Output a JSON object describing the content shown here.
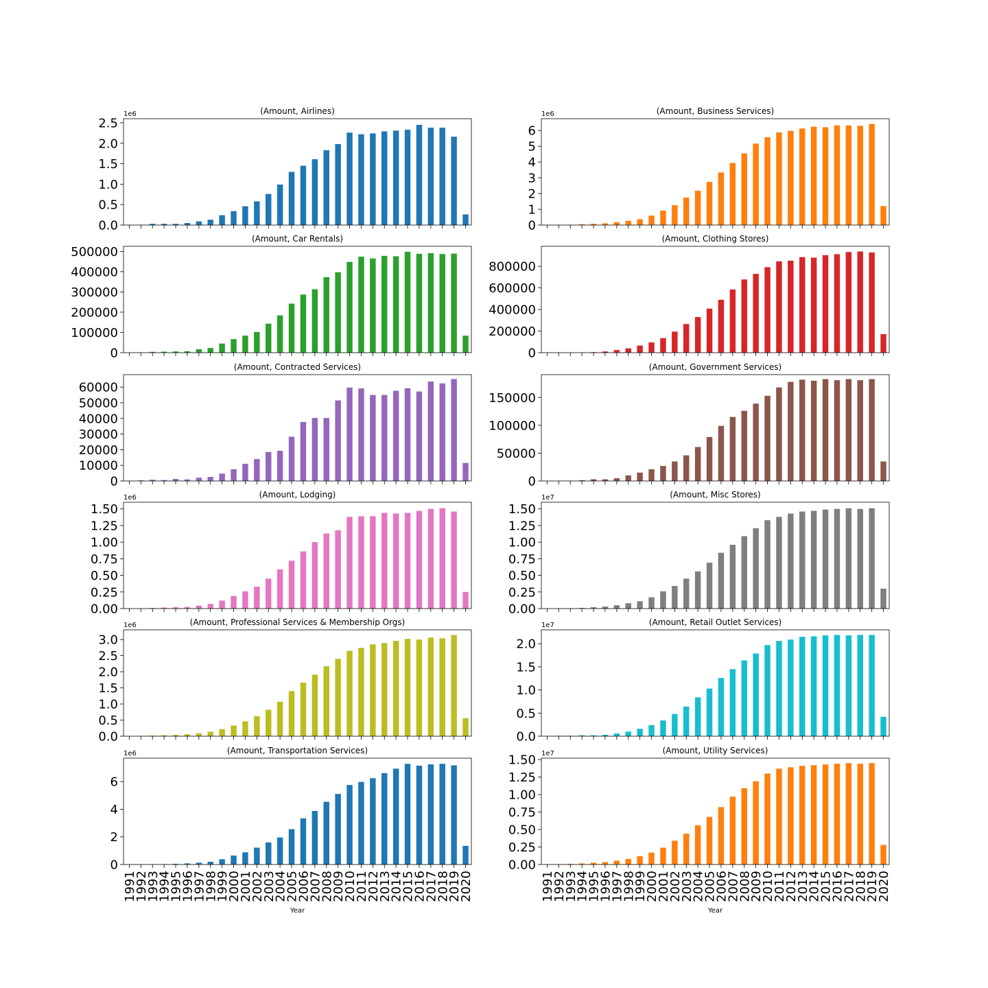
{
  "figure": {
    "xlabel": "Year"
  },
  "categories": [
    "1991",
    "1992",
    "1993",
    "1994",
    "1995",
    "1996",
    "1997",
    "1998",
    "1999",
    "2000",
    "2001",
    "2002",
    "2003",
    "2004",
    "2005",
    "2006",
    "2007",
    "2008",
    "2009",
    "2010",
    "2011",
    "2012",
    "2013",
    "2014",
    "2015",
    "2016",
    "2017",
    "2018",
    "2019",
    "2020"
  ],
  "chart_data": [
    {
      "type": "bar",
      "title": "(Amount, Airlines)",
      "color": "#1f77b4",
      "scale_label": "1e6",
      "ylim": [
        0,
        2.6
      ],
      "yticks": [
        0,
        0.5,
        1.0,
        1.5,
        2.0,
        2.5
      ],
      "ytick_labels": [
        "0.0",
        "0.5",
        "1.0",
        "1.5",
        "2.0",
        "2.5"
      ],
      "values": [
        0.003,
        0.005,
        0.03,
        0.03,
        0.03,
        0.05,
        0.09,
        0.13,
        0.24,
        0.34,
        0.46,
        0.58,
        0.76,
        0.99,
        1.3,
        1.45,
        1.61,
        1.83,
        1.98,
        2.26,
        2.22,
        2.24,
        2.29,
        2.31,
        2.33,
        2.45,
        2.38,
        2.38,
        2.16,
        0.26
      ]
    },
    {
      "type": "bar",
      "title": "(Amount, Business Services)",
      "color": "#ff7f0e",
      "scale_label": "1e6",
      "ylim": [
        0,
        6.75
      ],
      "yticks": [
        0,
        1,
        2,
        3,
        4,
        5,
        6
      ],
      "ytick_labels": [
        "0",
        "1",
        "2",
        "3",
        "4",
        "5",
        "6"
      ],
      "values": [
        0.005,
        0.01,
        0.01,
        0.05,
        0.08,
        0.11,
        0.18,
        0.27,
        0.37,
        0.6,
        0.92,
        1.26,
        1.74,
        2.18,
        2.74,
        3.34,
        3.94,
        4.55,
        5.17,
        5.58,
        5.88,
        5.98,
        6.13,
        6.24,
        6.21,
        6.33,
        6.32,
        6.3,
        6.42,
        1.2
      ]
    },
    {
      "type": "bar",
      "title": "(Amount, Car Rentals)",
      "color": "#2ca02c",
      "scale_label": "",
      "ylim": [
        0,
        525000
      ],
      "yticks": [
        0,
        100000,
        200000,
        300000,
        400000,
        500000
      ],
      "ytick_labels": [
        "0",
        "100000",
        "200000",
        "300000",
        "400000",
        "500000"
      ],
      "values": [
        500,
        1000,
        4000,
        5000,
        6000,
        7000,
        17000,
        23000,
        45000,
        67000,
        84000,
        102000,
        143000,
        184000,
        242000,
        287000,
        313000,
        373000,
        397000,
        448000,
        474000,
        465000,
        478000,
        476000,
        498000,
        488000,
        491000,
        487000,
        489000,
        84000
      ]
    },
    {
      "type": "bar",
      "title": "(Amount, Clothing Stores)",
      "color": "#d62728",
      "scale_label": "",
      "ylim": [
        0,
        985000
      ],
      "yticks": [
        0,
        200000,
        400000,
        600000,
        800000
      ],
      "ytick_labels": [
        "0",
        "200000",
        "400000",
        "600000",
        "800000"
      ],
      "values": [
        300,
        500,
        1000,
        2000,
        5000,
        11000,
        24000,
        40000,
        66000,
        95000,
        135000,
        195000,
        265000,
        330000,
        408000,
        490000,
        585000,
        678000,
        730000,
        792000,
        846000,
        852000,
        885000,
        880000,
        903000,
        912000,
        932000,
        937000,
        928000,
        172000
      ]
    },
    {
      "type": "bar",
      "title": "(Amount, Contracted Services)",
      "color": "#9467bd",
      "scale_label": "",
      "ylim": [
        0,
        68000
      ],
      "yticks": [
        0,
        10000,
        20000,
        30000,
        40000,
        50000,
        60000
      ],
      "ytick_labels": [
        "0",
        "10000",
        "20000",
        "30000",
        "40000",
        "50000",
        "60000"
      ],
      "values": [
        100,
        400,
        800,
        600,
        1300,
        1000,
        2100,
        2600,
        4700,
        7500,
        11000,
        14000,
        18500,
        19300,
        28300,
        37700,
        40300,
        40300,
        51500,
        59700,
        59200,
        55000,
        55000,
        57700,
        59300,
        57200,
        63600,
        62400,
        65200,
        11500
      ]
    },
    {
      "type": "bar",
      "title": "(Amount, Government Services)",
      "color": "#8c564b",
      "scale_label": "",
      "ylim": [
        0,
        191000
      ],
      "yticks": [
        0,
        50000,
        100000,
        150000
      ],
      "ytick_labels": [
        "0",
        "50000",
        "100000",
        "150000"
      ],
      "values": [
        100,
        200,
        500,
        1500,
        3000,
        3000,
        5000,
        10000,
        15000,
        21000,
        27000,
        35000,
        46000,
        61000,
        79000,
        99000,
        115000,
        126000,
        139000,
        153000,
        168000,
        178000,
        182000,
        180000,
        183000,
        181000,
        183000,
        181000,
        183000,
        35000
      ]
    },
    {
      "type": "bar",
      "title": "(Amount, Lodging)",
      "color": "#e377c2",
      "scale_label": "1e6",
      "ylim": [
        0,
        1.6
      ],
      "yticks": [
        0,
        0.25,
        0.5,
        0.75,
        1.0,
        1.25,
        1.5
      ],
      "ytick_labels": [
        "0.00",
        "0.25",
        "0.50",
        "0.75",
        "1.00",
        "1.25",
        "1.50"
      ],
      "values": [
        0.002,
        0.003,
        0.01,
        0.015,
        0.02,
        0.025,
        0.045,
        0.07,
        0.12,
        0.19,
        0.26,
        0.33,
        0.45,
        0.59,
        0.72,
        0.86,
        1.0,
        1.13,
        1.18,
        1.38,
        1.39,
        1.39,
        1.44,
        1.43,
        1.44,
        1.47,
        1.5,
        1.51,
        1.46,
        0.25
      ]
    },
    {
      "type": "bar",
      "title": "(Amount, Misc Stores)",
      "color": "#7f7f7f",
      "scale_label": "1e7",
      "ylim": [
        0,
        1.6
      ],
      "yticks": [
        0,
        0.25,
        0.5,
        0.75,
        1.0,
        1.25,
        1.5
      ],
      "ytick_labels": [
        "0.00",
        "0.25",
        "0.50",
        "0.75",
        "1.00",
        "1.25",
        "1.50"
      ],
      "values": [
        0.001,
        0.002,
        0.004,
        0.01,
        0.02,
        0.03,
        0.05,
        0.08,
        0.11,
        0.17,
        0.26,
        0.34,
        0.45,
        0.56,
        0.69,
        0.84,
        0.96,
        1.09,
        1.21,
        1.33,
        1.38,
        1.43,
        1.46,
        1.47,
        1.49,
        1.5,
        1.51,
        1.5,
        1.51,
        0.3
      ]
    },
    {
      "type": "bar",
      "title": "(Amount, Professional Services & Membership Orgs)",
      "color": "#bcbd22",
      "scale_label": "1e6",
      "ylim": [
        0,
        3.3
      ],
      "yticks": [
        0,
        0.5,
        1.0,
        1.5,
        2.0,
        2.5,
        3.0
      ],
      "ytick_labels": [
        "0.0",
        "0.5",
        "1.0",
        "1.5",
        "2.0",
        "2.5",
        "3.0"
      ],
      "values": [
        0.01,
        0.01,
        0.02,
        0.03,
        0.04,
        0.06,
        0.09,
        0.14,
        0.22,
        0.33,
        0.46,
        0.62,
        0.82,
        1.07,
        1.4,
        1.66,
        1.91,
        2.17,
        2.4,
        2.65,
        2.74,
        2.85,
        2.89,
        2.96,
        3.02,
        3.0,
        3.06,
        3.04,
        3.14,
        0.56
      ]
    },
    {
      "type": "bar",
      "title": "(Amount, Retail Outlet Services)",
      "color": "#17becf",
      "scale_label": "1e7",
      "ylim": [
        0,
        2.3
      ],
      "yticks": [
        0,
        0.5,
        1.0,
        1.5,
        2.0
      ],
      "ytick_labels": [
        "0.0",
        "0.5",
        "1.0",
        "1.5",
        "2.0"
      ],
      "values": [
        0.005,
        0.01,
        0.01,
        0.02,
        0.02,
        0.03,
        0.06,
        0.1,
        0.16,
        0.24,
        0.34,
        0.48,
        0.64,
        0.84,
        1.03,
        1.26,
        1.45,
        1.64,
        1.79,
        1.97,
        2.06,
        2.09,
        2.15,
        2.16,
        2.18,
        2.19,
        2.18,
        2.19,
        2.19,
        0.42
      ]
    },
    {
      "type": "bar",
      "title": "(Amount, Transportation Services)",
      "color": "#1f77b4",
      "scale_label": "1e6",
      "ylim": [
        0,
        7.7
      ],
      "yticks": [
        0,
        2,
        4,
        6
      ],
      "ytick_labels": [
        "0",
        "2",
        "4",
        "6"
      ],
      "values": [
        0.005,
        0.01,
        0.01,
        0.02,
        0.05,
        0.08,
        0.13,
        0.2,
        0.38,
        0.65,
        0.88,
        1.22,
        1.6,
        1.96,
        2.56,
        3.34,
        3.88,
        4.54,
        5.11,
        5.76,
        5.98,
        6.25,
        6.62,
        6.94,
        7.29,
        7.16,
        7.25,
        7.29,
        7.18,
        1.35
      ]
    },
    {
      "type": "bar",
      "title": "(Amount, Utility Services)",
      "color": "#ff7f0e",
      "scale_label": "1e7",
      "ylim": [
        0,
        1.52
      ],
      "yticks": [
        0,
        0.25,
        0.5,
        0.75,
        1.0,
        1.25,
        1.5
      ],
      "ytick_labels": [
        "0.00",
        "0.25",
        "0.50",
        "0.75",
        "1.00",
        "1.25",
        "1.50"
      ],
      "values": [
        0.002,
        0.005,
        0.01,
        0.015,
        0.025,
        0.035,
        0.055,
        0.08,
        0.12,
        0.17,
        0.24,
        0.34,
        0.44,
        0.56,
        0.68,
        0.82,
        0.97,
        1.09,
        1.19,
        1.3,
        1.37,
        1.39,
        1.41,
        1.42,
        1.43,
        1.44,
        1.45,
        1.44,
        1.45,
        0.28
      ]
    }
  ]
}
